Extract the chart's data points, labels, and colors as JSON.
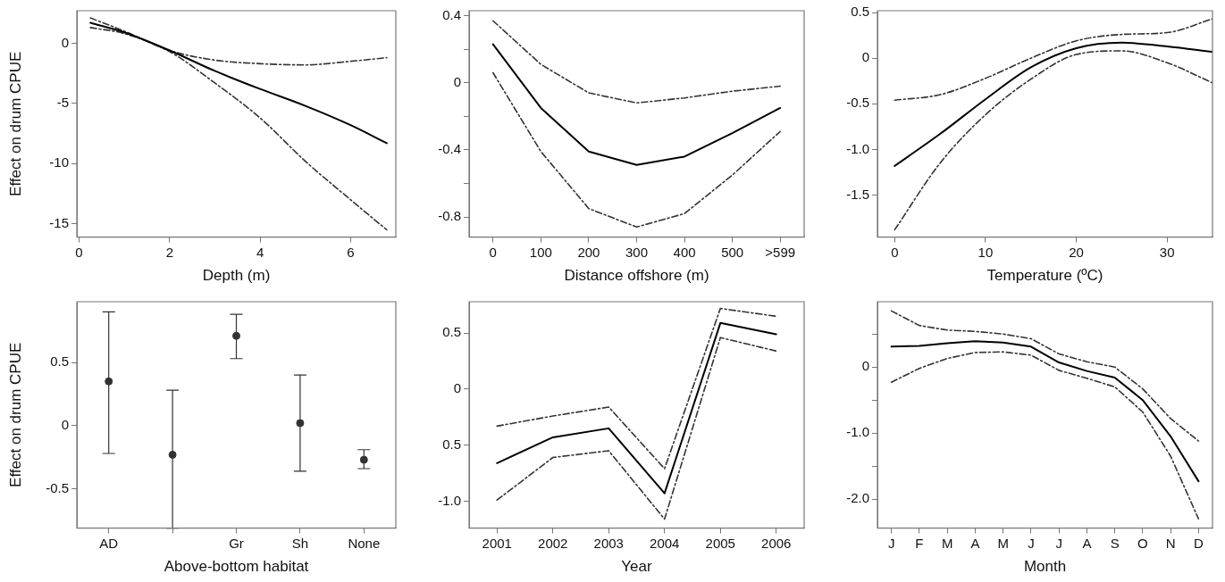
{
  "chart_data": [
    {
      "type": "line",
      "xlabel": "Depth (m)",
      "ylabel": "Effect on drum CPUE",
      "x": [
        0.25,
        1,
        2,
        3,
        4,
        5,
        6,
        6.8
      ],
      "xlim": [
        -0.05,
        7.0
      ],
      "xticks": [
        0,
        2,
        4,
        6
      ],
      "ylim": [
        -16.1,
        2.7
      ],
      "yticks": [
        0,
        -5,
        -10,
        -15
      ],
      "grid": false,
      "series": [
        {
          "color": "#000000",
          "line_style": "solid",
          "values": [
            1.7,
            0.9,
            -0.6,
            -2.3,
            -3.8,
            -5.2,
            -6.8,
            -8.3
          ]
        },
        {
          "color": "#333333",
          "line_style": "dashed",
          "values": [
            2.1,
            1.0,
            -0.6,
            -1.4,
            -1.7,
            -1.8,
            -1.5,
            -1.2
          ]
        },
        {
          "color": "#333333",
          "line_style": "dashed",
          "values": [
            1.3,
            0.8,
            -0.7,
            -3.3,
            -6.2,
            -9.8,
            -13.0,
            -15.5
          ]
        }
      ]
    },
    {
      "type": "line",
      "xlabel": "Distance offshore (m)",
      "categories": [
        "0",
        "100",
        "200",
        "300",
        "400",
        "500",
        ">599"
      ],
      "ylim": [
        -0.92,
        0.43
      ],
      "yticks": [
        0.4,
        {
          "value": 0.2,
          "label": null
        },
        0,
        {
          "value": -0.2,
          "label": null
        },
        -0.4,
        {
          "value": -0.6,
          "label": null
        },
        -0.8
      ],
      "grid": false,
      "series": [
        {
          "color": "#000000",
          "line_style": "solid",
          "values": [
            0.23,
            -0.15,
            -0.41,
            -0.49,
            -0.44,
            -0.3,
            -0.15
          ]
        },
        {
          "color": "#333333",
          "line_style": "dashed",
          "values": [
            0.37,
            0.11,
            -0.06,
            -0.12,
            -0.09,
            -0.05,
            -0.02
          ]
        },
        {
          "color": "#333333",
          "line_style": "dashed",
          "values": [
            0.06,
            -0.41,
            -0.75,
            -0.86,
            -0.78,
            -0.55,
            -0.29
          ]
        }
      ]
    },
    {
      "type": "line",
      "xlabel": "Temperature (ºC)",
      "x": [
        0,
        5,
        10,
        15,
        20,
        25,
        30,
        35
      ],
      "xlim": [
        -1.9,
        35
      ],
      "xticks": [
        0,
        10,
        20,
        30
      ],
      "ylim": [
        -1.96,
        0.52
      ],
      "yticks": [
        0.5,
        0,
        -0.5,
        {
          "value": -1,
          "label": "-1.0"
        },
        -1.5
      ],
      "grid": false,
      "series": [
        {
          "color": "#000000",
          "line_style": "solid",
          "values": [
            -1.18,
            -0.83,
            -0.45,
            -0.1,
            0.11,
            0.17,
            0.13,
            0.07
          ]
        },
        {
          "color": "#333333",
          "line_style": "dashed",
          "values": [
            -0.46,
            -0.4,
            -0.22,
            0.0,
            0.19,
            0.26,
            0.28,
            0.43
          ]
        },
        {
          "color": "#333333",
          "line_style": "dashed",
          "values": [
            -1.88,
            -1.15,
            -0.62,
            -0.23,
            0.04,
            0.08,
            -0.05,
            -0.27
          ]
        }
      ]
    },
    {
      "type": "scatter",
      "xlabel": "Above-bottom habitat",
      "ylabel": "Effect on drum CPUE",
      "categories": [
        "AD",
        null,
        "Gr",
        "Sh",
        "None"
      ],
      "ylim": [
        -0.81,
        0.98
      ],
      "yticks": [
        0.5,
        0,
        -0.5
      ],
      "grid": false,
      "color": "#333333",
      "marker": "circle",
      "values": [
        0.35,
        -0.23,
        0.71,
        0.02,
        -0.27
      ],
      "errors": [
        [
          -0.22,
          0.9
        ],
        [
          -0.81,
          0.28
        ],
        [
          0.53,
          0.88
        ],
        [
          -0.36,
          0.4
        ],
        [
          -0.34,
          -0.19
        ]
      ]
    },
    {
      "type": "line",
      "xlabel": "Year",
      "categories": [
        "2001",
        "2002",
        "2003",
        "2004",
        "2005",
        "2006"
      ],
      "ylim": [
        -1.24,
        0.78
      ],
      "yticks": [
        0.5,
        0,
        {
          "value": -0.5,
          "label": "0.5"
        },
        {
          "value": -1,
          "label": "-1.0"
        }
      ],
      "grid": false,
      "series": [
        {
          "color": "#000000",
          "line_style": "solid",
          "values": [
            -0.66,
            -0.43,
            -0.35,
            -0.93,
            0.59,
            0.49
          ]
        },
        {
          "color": "#333333",
          "line_style": "dashed",
          "values": [
            -0.33,
            -0.24,
            -0.16,
            -0.71,
            0.72,
            0.65
          ]
        },
        {
          "color": "#333333",
          "line_style": "dashed",
          "values": [
            -0.99,
            -0.61,
            -0.55,
            -1.16,
            0.46,
            0.34
          ]
        }
      ]
    },
    {
      "type": "line",
      "xlabel": "Month",
      "categories": [
        "J",
        "F",
        "M",
        "A",
        "M",
        "J",
        "J",
        "A",
        "S",
        "O",
        "N",
        "D"
      ],
      "ylim": [
        -2.44,
        0.99
      ],
      "yticks": [
        {
          "value": 0.5,
          "label": null
        },
        0,
        {
          "value": -0.5,
          "label": null
        },
        {
          "value": -1,
          "label": "-1.0"
        },
        {
          "value": -1.5,
          "label": null
        },
        {
          "value": -2,
          "label": "-2.0"
        }
      ],
      "grid": false,
      "series": [
        {
          "color": "#000000",
          "line_style": "solid",
          "values": [
            0.31,
            0.32,
            0.36,
            0.39,
            0.37,
            0.31,
            0.07,
            -0.06,
            -0.16,
            -0.5,
            -1.05,
            -1.73
          ]
        },
        {
          "color": "#333333",
          "line_style": "dashed",
          "values": [
            0.85,
            0.63,
            0.56,
            0.54,
            0.5,
            0.43,
            0.2,
            0.08,
            0.0,
            -0.33,
            -0.78,
            -1.12
          ]
        },
        {
          "color": "#333333",
          "line_style": "dashed",
          "values": [
            -0.23,
            -0.02,
            0.13,
            0.22,
            0.23,
            0.18,
            -0.05,
            -0.17,
            -0.3,
            -0.68,
            -1.35,
            -2.3
          ]
        }
      ]
    }
  ]
}
